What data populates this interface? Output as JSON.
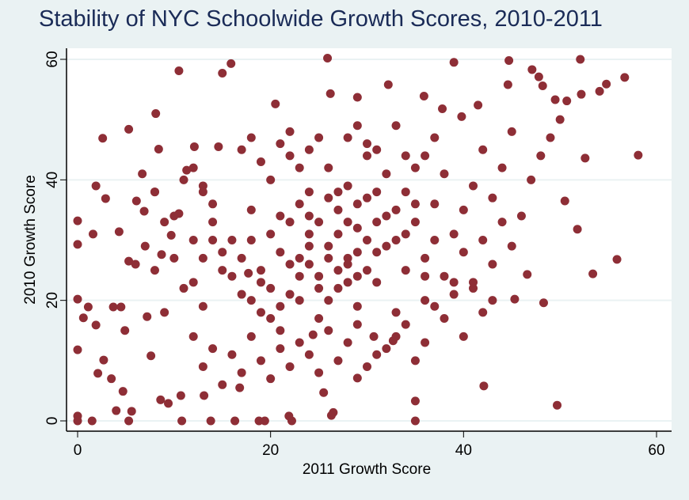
{
  "chart_data": {
    "type": "scatter",
    "title": "Stability of NYC Schoolwide Growth Scores, 2010-2011",
    "xlabel": "2011 Growth Score",
    "ylabel": "2010 Growth Score",
    "xlim": [
      -1,
      61
    ],
    "ylim": [
      -2,
      62
    ],
    "xticks": [
      "0",
      "20",
      "40",
      "60"
    ],
    "yticks": [
      "0",
      "20",
      "40",
      "60"
    ],
    "grid": "horizontal at y ticks",
    "marker_color": "#8e2e36",
    "background_color": "#eaf2f3",
    "title_color": "#1a2b57",
    "points": [
      [
        0,
        33.2
      ],
      [
        0,
        29.3
      ],
      [
        0,
        20.2
      ],
      [
        0,
        11.8
      ],
      [
        0,
        0.8
      ],
      [
        0,
        0
      ],
      [
        0.6,
        17.1
      ],
      [
        1.1,
        18.9
      ],
      [
        1.5,
        0
      ],
      [
        1.6,
        31
      ],
      [
        1.9,
        39
      ],
      [
        1.9,
        15.9
      ],
      [
        2.1,
        7.9
      ],
      [
        2.6,
        46.9
      ],
      [
        2.9,
        36.9
      ],
      [
        2.7,
        10.1
      ],
      [
        3.5,
        7
      ],
      [
        3.7,
        18.9
      ],
      [
        4,
        1.7
      ],
      [
        4.3,
        31.4
      ],
      [
        4.5,
        18.9
      ],
      [
        4.7,
        4.9
      ],
      [
        4.9,
        15
      ],
      [
        5.3,
        26.5
      ],
      [
        5.3,
        48.4
      ],
      [
        5.3,
        0
      ],
      [
        5.6,
        1.6
      ],
      [
        6.1,
        36.5
      ],
      [
        6.7,
        41
      ],
      [
        6.9,
        34.8
      ],
      [
        7.2,
        17.3
      ],
      [
        7.6,
        10.8
      ],
      [
        8,
        38
      ],
      [
        8.1,
        51
      ],
      [
        8.4,
        45.1
      ],
      [
        8.6,
        3.5
      ],
      [
        8.7,
        27.6
      ],
      [
        9.4,
        2.9
      ],
      [
        9.7,
        30.8
      ],
      [
        10.5,
        58.1
      ],
      [
        10.5,
        34.4
      ],
      [
        10.7,
        4.2
      ],
      [
        10.8,
        0
      ],
      [
        11.3,
        41.6
      ],
      [
        12.1,
        45.5
      ],
      [
        13,
        39
      ],
      [
        13.1,
        4.2
      ],
      [
        13.8,
        0
      ],
      [
        14.6,
        45.5
      ],
      [
        15,
        57.7
      ],
      [
        15.9,
        59.3
      ],
      [
        16.3,
        0
      ],
      [
        16.8,
        5.5
      ],
      [
        17.7,
        24.5
      ],
      [
        20.5,
        52.6
      ],
      [
        25.9,
        60.2
      ],
      [
        26.2,
        54.3
      ],
      [
        29,
        53.7
      ],
      [
        32.2,
        55.8
      ],
      [
        35.9,
        53.9
      ],
      [
        39,
        59.5
      ],
      [
        37.8,
        51.8
      ],
      [
        39.8,
        50.5
      ],
      [
        41.5,
        52.4
      ],
      [
        44.6,
        55.8
      ],
      [
        44.7,
        59.8
      ],
      [
        47.1,
        58.3
      ],
      [
        47.8,
        57.1
      ],
      [
        48.2,
        55.6
      ],
      [
        49.5,
        53.3
      ],
      [
        50.7,
        53.1
      ],
      [
        52.2,
        54.2
      ],
      [
        52.1,
        60
      ],
      [
        54.1,
        54.7
      ],
      [
        54.8,
        55.9
      ],
      [
        56.7,
        57
      ],
      [
        58.1,
        44.1
      ],
      [
        55.9,
        26.8
      ],
      [
        53.4,
        24.4
      ],
      [
        51.8,
        31.8
      ],
      [
        49.7,
        2.6
      ],
      [
        52.6,
        43.6
      ],
      [
        50.5,
        36.5
      ],
      [
        48.3,
        19.6
      ],
      [
        45.3,
        20.2
      ],
      [
        46.6,
        24.3
      ],
      [
        42.1,
        5.8
      ],
      [
        35,
        0
      ],
      [
        35,
        3.3
      ],
      [
        32.7,
        13.3
      ],
      [
        30.7,
        14
      ],
      [
        24.4,
        14.3
      ],
      [
        25.5,
        4.7
      ],
      [
        26.3,
        0.9
      ],
      [
        22.2,
        0
      ],
      [
        21.9,
        0.8
      ],
      [
        18.8,
        0
      ],
      [
        19.4,
        0
      ],
      [
        26.5,
        1.4
      ],
      [
        29,
        7.1
      ],
      [
        18,
        30
      ],
      [
        19,
        25
      ],
      [
        20,
        22
      ],
      [
        21,
        28
      ],
      [
        22,
        33
      ],
      [
        23,
        27
      ],
      [
        24,
        31
      ],
      [
        25,
        24
      ],
      [
        26,
        29
      ],
      [
        27,
        35
      ],
      [
        28,
        26
      ],
      [
        29,
        32
      ],
      [
        30,
        37
      ],
      [
        31,
        28
      ],
      [
        32,
        34
      ],
      [
        33,
        30
      ],
      [
        34,
        38
      ],
      [
        35,
        33
      ],
      [
        36,
        27
      ],
      [
        37,
        36
      ],
      [
        38,
        41
      ],
      [
        39,
        31
      ],
      [
        40,
        35
      ],
      [
        41,
        39
      ],
      [
        42,
        45
      ],
      [
        43,
        37
      ],
      [
        44,
        42
      ],
      [
        45,
        48
      ],
      [
        46,
        34
      ],
      [
        47,
        40
      ],
      [
        48,
        44
      ],
      [
        49,
        47
      ],
      [
        50,
        50
      ],
      [
        15,
        25
      ],
      [
        16,
        30
      ],
      [
        17,
        21
      ],
      [
        18,
        35
      ],
      [
        19,
        18
      ],
      [
        20,
        40
      ],
      [
        21,
        15
      ],
      [
        22,
        44
      ],
      [
        23,
        20
      ],
      [
        24,
        38
      ],
      [
        25,
        17
      ],
      [
        26,
        42
      ],
      [
        27,
        22
      ],
      [
        28,
        39
      ],
      [
        29,
        19
      ],
      [
        30,
        44
      ],
      [
        31,
        23
      ],
      [
        32,
        41
      ],
      [
        33,
        18
      ],
      [
        34,
        25
      ],
      [
        35,
        42
      ],
      [
        36,
        20
      ],
      [
        37,
        30
      ],
      [
        38,
        24
      ],
      [
        39,
        21
      ],
      [
        40,
        28
      ],
      [
        41,
        23
      ],
      [
        42,
        30
      ],
      [
        43,
        26
      ],
      [
        44,
        33
      ],
      [
        45,
        29
      ],
      [
        10,
        27
      ],
      [
        11,
        22
      ],
      [
        12,
        30
      ],
      [
        13,
        19
      ],
      [
        14,
        33
      ],
      [
        9,
        18
      ],
      [
        8,
        25
      ],
      [
        7,
        29
      ],
      [
        6,
        26
      ],
      [
        12,
        14
      ],
      [
        13,
        9
      ],
      [
        14,
        12
      ],
      [
        15,
        6
      ],
      [
        16,
        11
      ],
      [
        17,
        8
      ],
      [
        18,
        14
      ],
      [
        19,
        10
      ],
      [
        20,
        7
      ],
      [
        21,
        12
      ],
      [
        22,
        9
      ],
      [
        23,
        13
      ],
      [
        24,
        11
      ],
      [
        25,
        8
      ],
      [
        26,
        15
      ],
      [
        27,
        10
      ],
      [
        28,
        13
      ],
      [
        29,
        16
      ],
      [
        30,
        9
      ],
      [
        31,
        11
      ],
      [
        32,
        12
      ],
      [
        33,
        14
      ],
      [
        34,
        16
      ],
      [
        35,
        10
      ],
      [
        36,
        13
      ],
      [
        17,
        45
      ],
      [
        18,
        47
      ],
      [
        19,
        43
      ],
      [
        21,
        46
      ],
      [
        22,
        48
      ],
      [
        23,
        42
      ],
      [
        24,
        45
      ],
      [
        25,
        47
      ],
      [
        28,
        47
      ],
      [
        29,
        49
      ],
      [
        30,
        46
      ],
      [
        31,
        45
      ],
      [
        33,
        49
      ],
      [
        34,
        44
      ],
      [
        36,
        44
      ],
      [
        37,
        47
      ],
      [
        20,
        31
      ],
      [
        21,
        34
      ],
      [
        22,
        26
      ],
      [
        23,
        36
      ],
      [
        24,
        29
      ],
      [
        25,
        33
      ],
      [
        26,
        27
      ],
      [
        27,
        31
      ],
      [
        28,
        23
      ],
      [
        29,
        28
      ],
      [
        30,
        25
      ],
      [
        31,
        33
      ],
      [
        32,
        29
      ],
      [
        33,
        35
      ],
      [
        34,
        31
      ],
      [
        35,
        36
      ],
      [
        26,
        37
      ],
      [
        27,
        38
      ],
      [
        28,
        33
      ],
      [
        29,
        36
      ],
      [
        30,
        30
      ],
      [
        31,
        38
      ],
      [
        24,
        34
      ],
      [
        23,
        24
      ],
      [
        22,
        21
      ],
      [
        21,
        19
      ],
      [
        20,
        17
      ],
      [
        19,
        23
      ],
      [
        18,
        20
      ],
      [
        17,
        27
      ],
      [
        16,
        24
      ],
      [
        15,
        28
      ],
      [
        14,
        30
      ],
      [
        13,
        27
      ],
      [
        12,
        23
      ],
      [
        38,
        17
      ],
      [
        39,
        23
      ],
      [
        40,
        14
      ],
      [
        41,
        22
      ],
      [
        42,
        18
      ],
      [
        43,
        20
      ],
      [
        37,
        19
      ],
      [
        36,
        24
      ],
      [
        12,
        42
      ],
      [
        13,
        38
      ],
      [
        14,
        36
      ],
      [
        11,
        40
      ],
      [
        10,
        34
      ],
      [
        9,
        33
      ],
      [
        8,
        38
      ],
      [
        27,
        25
      ],
      [
        26,
        20
      ],
      [
        28,
        27
      ],
      [
        29,
        24
      ],
      [
        25,
        22
      ],
      [
        24,
        26
      ]
    ]
  }
}
